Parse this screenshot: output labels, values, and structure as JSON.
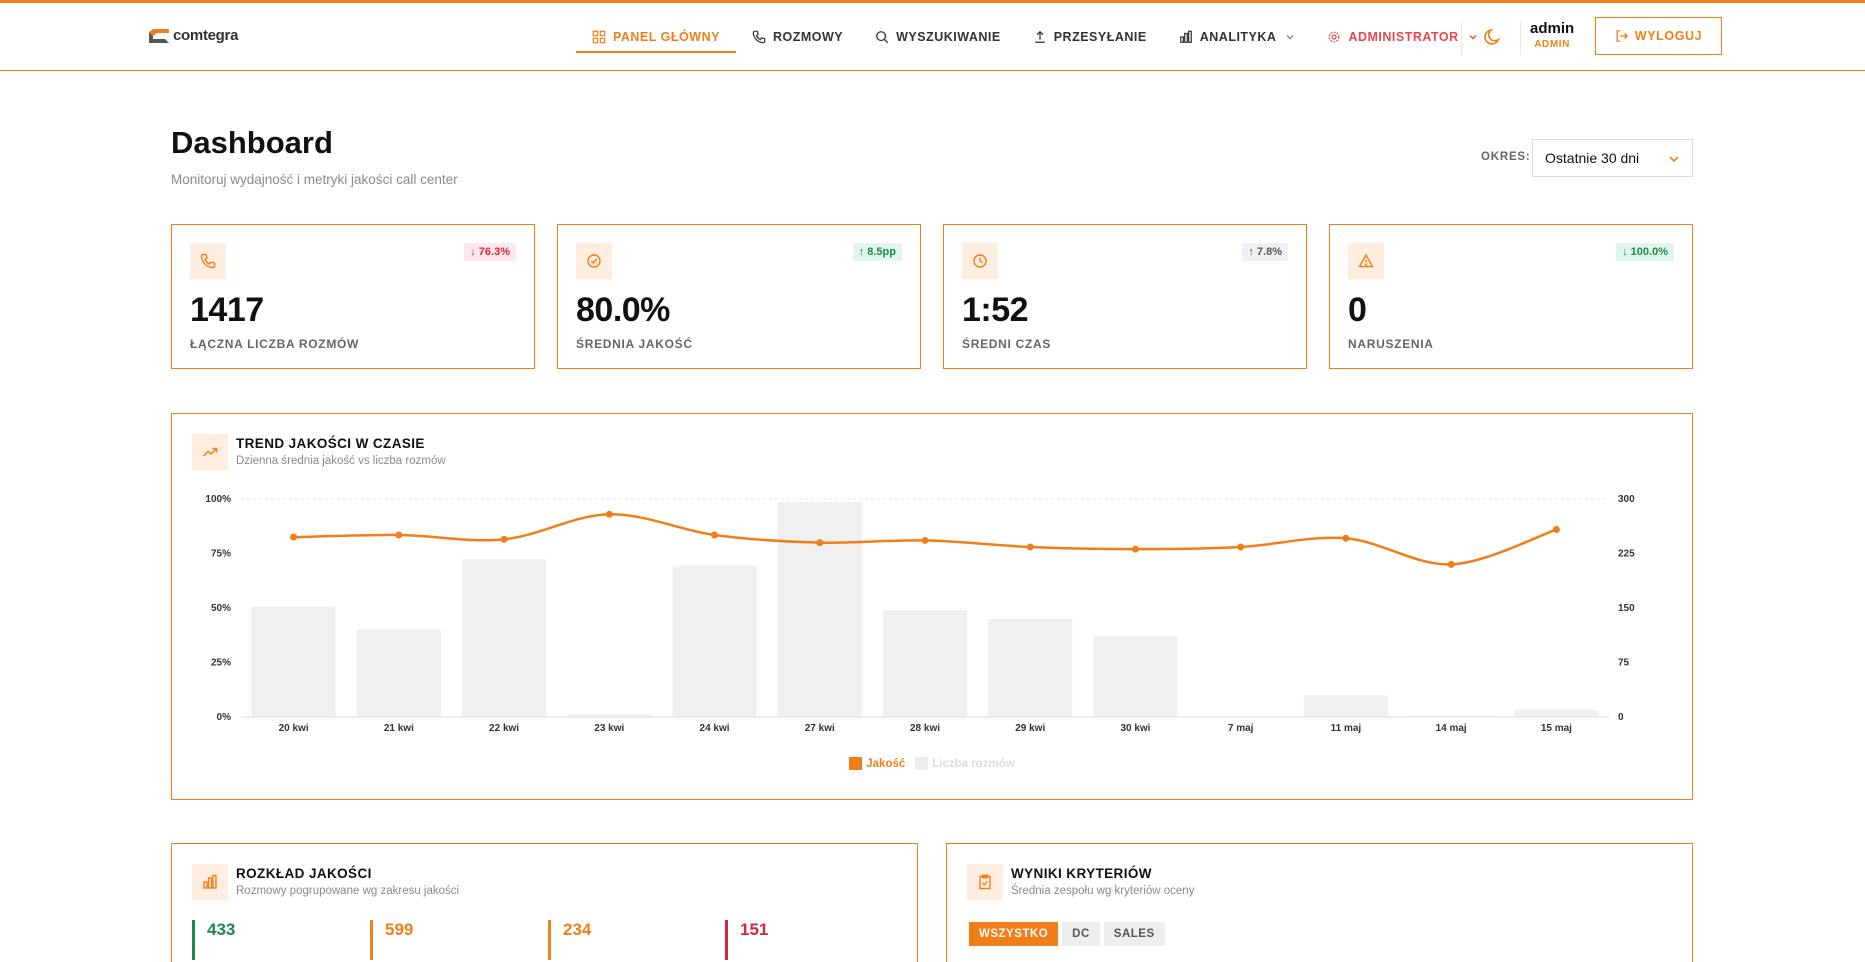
{
  "brand": {
    "name": "comtegra"
  },
  "nav": {
    "items": [
      {
        "label": "PANEL GŁÓWNY",
        "icon": "grid-icon"
      },
      {
        "label": "ROZMOWY",
        "icon": "phone-icon"
      },
      {
        "label": "WYSZUKIWANIE",
        "icon": "search-icon"
      },
      {
        "label": "PRZESYŁANIE",
        "icon": "upload-icon"
      },
      {
        "label": "ANALITYKA",
        "icon": "bar-chart-icon"
      },
      {
        "label": "ADMINISTRATOR",
        "icon": "settings-icon"
      }
    ]
  },
  "user": {
    "name": "admin",
    "role": "ADMIN",
    "logout_label": "WYLOGUJ"
  },
  "page": {
    "title": "Dashboard",
    "subtitle": "Monitoruj wydajność i metryki jakości call center",
    "period_label": "OKRES:",
    "period_value": "Ostatnie 30 dni"
  },
  "kpis": [
    {
      "value": "1417",
      "label": "ŁĄCZNA LICZBA ROZMÓW",
      "badge": "↓ 76.3%",
      "badge_type": "red",
      "icon": "phone-icon"
    },
    {
      "value": "80.0%",
      "label": "ŚREDNIA JAKOŚĆ",
      "badge": "↑ 8.5pp",
      "badge_type": "green",
      "icon": "check-circle-icon"
    },
    {
      "value": "1:52",
      "label": "ŚREDNI CZAS",
      "badge": "↑ 7.8%",
      "badge_type": "gray",
      "icon": "clock-icon"
    },
    {
      "value": "0",
      "label": "NARUSZENIA",
      "badge": "↓ 100.0%",
      "badge_type": "green",
      "icon": "alert-triangle-icon"
    }
  ],
  "trend_card": {
    "title": "TREND JAKOŚCI W CZASIE",
    "subtitle": "Dzienna średnia jakość vs liczba rozmów",
    "icon": "trending-up-icon"
  },
  "chart_data": {
    "type": "bar",
    "categories": [
      "20 kwi",
      "21 kwi",
      "22 kwi",
      "23 kwi",
      "24 kwi",
      "27 kwi",
      "28 kwi",
      "29 kwi",
      "30 kwi",
      "7 maj",
      "11 maj",
      "14 maj",
      "15 maj"
    ],
    "series": [
      {
        "name": "Jakość",
        "type": "line",
        "axis": "left",
        "color": "#f07f1a",
        "values": [
          82.5,
          83.5,
          81.5,
          93,
          83.5,
          80,
          81,
          78,
          77,
          78,
          82,
          70,
          86
        ]
      },
      {
        "name": "Liczba rozmów",
        "type": "bar",
        "axis": "right",
        "color": "#f0f0f0",
        "values": [
          152,
          121,
          217,
          4,
          208,
          296,
          147,
          135,
          112,
          0,
          30,
          2,
          10
        ]
      }
    ],
    "y_left": {
      "ticks": [
        "100%",
        "75%",
        "50%",
        "25%",
        "0%"
      ],
      "range": [
        0,
        100
      ]
    },
    "y_right": {
      "ticks": [
        "300",
        "225",
        "150",
        "75",
        "0"
      ],
      "range": [
        0,
        300
      ]
    },
    "legend_position": "bottom"
  },
  "distribution_card": {
    "title": "ROZKŁAD JAKOŚCI",
    "subtitle": "Rozmowy pogrupowane wg zakresu jakości",
    "icon": "bar-chart-icon",
    "items": [
      {
        "value": "433",
        "color": "#1b8a4e"
      },
      {
        "value": "599",
        "color": "#f07f1a"
      },
      {
        "value": "234",
        "color": "#f07f1a"
      },
      {
        "value": "151",
        "color": "#d7263d"
      }
    ]
  },
  "criteria_card": {
    "title": "WYNIKI KRYTERIÓW",
    "subtitle": "Średnia zespołu wg kryteriów oceny",
    "icon": "clipboard-check-icon",
    "tabs": [
      "WSZYSTKO",
      "DC",
      "SALES"
    ]
  }
}
